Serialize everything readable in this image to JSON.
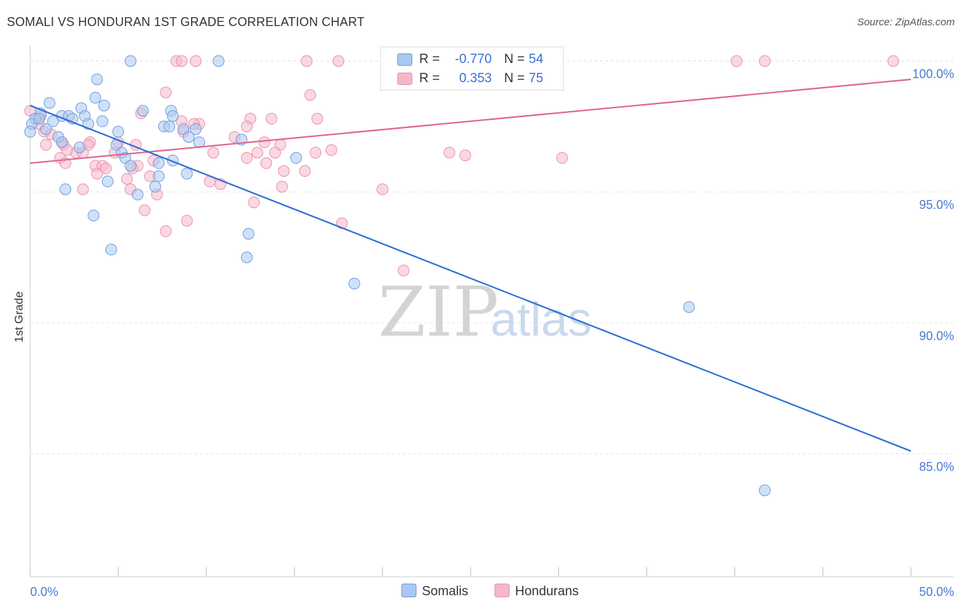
{
  "header": {
    "title": "SOMALI VS HONDURAN 1ST GRADE CORRELATION CHART",
    "source": "Source: ZipAtlas.com"
  },
  "watermark": {
    "zip": "ZIP",
    "atlas": "atlas"
  },
  "legend": {
    "rows": [
      {
        "r_label": "R =",
        "r_value": "-0.770",
        "n_label": "N =",
        "n_value": "54",
        "color": "#a9c8f0"
      },
      {
        "r_label": "R =",
        "r_value": "0.353",
        "n_label": "N =",
        "n_value": "75",
        "color": "#f5b8cb"
      }
    ]
  },
  "bottom_legend": {
    "items": [
      {
        "label": "Somalis",
        "color": "#a9c8f0"
      },
      {
        "label": "Hondurans",
        "color": "#f5b8cb"
      }
    ]
  },
  "chart_data": {
    "type": "scatter",
    "title": "SOMALI VS HONDURAN 1ST GRADE CORRELATION CHART",
    "xlabel": "",
    "ylabel": "1st Grade",
    "xlim": [
      0,
      50
    ],
    "ylim": [
      80.3,
      100.5
    ],
    "x_tick_labels": [
      "0.0%",
      "50.0%"
    ],
    "y_ticks": [
      85,
      90,
      95,
      100
    ],
    "y_tick_labels": [
      "85.0%",
      "90.0%",
      "95.0%",
      "100.0%"
    ],
    "grid": true,
    "colors": {
      "somalis_fill": "#a9c8f0",
      "somalis_stroke": "#6d9be0",
      "somalis_line": "#2f6fd6",
      "hondurans_fill": "#f5b8cb",
      "hondurans_stroke": "#e890ab",
      "hondurans_line": "#e0678f",
      "tick_text": "#4a7bd0",
      "grid": "#e2e2e2"
    },
    "series": [
      {
        "name": "Somalis",
        "trend": {
          "x": [
            0,
            50
          ],
          "y": [
            98.3,
            85.1
          ]
        },
        "points": [
          {
            "x": 5.7,
            "y": 100
          },
          {
            "x": 10.7,
            "y": 100
          },
          {
            "x": 3.8,
            "y": 99.3
          },
          {
            "x": 1.1,
            "y": 98.4
          },
          {
            "x": 3.7,
            "y": 98.6
          },
          {
            "x": 0.6,
            "y": 98.0
          },
          {
            "x": 2.9,
            "y": 98.2
          },
          {
            "x": 4.2,
            "y": 98.3
          },
          {
            "x": 6.4,
            "y": 98.1
          },
          {
            "x": 8.0,
            "y": 98.1
          },
          {
            "x": 8.1,
            "y": 97.9
          },
          {
            "x": 1.8,
            "y": 97.9
          },
          {
            "x": 2.2,
            "y": 97.9
          },
          {
            "x": 3.1,
            "y": 97.9
          },
          {
            "x": 0.3,
            "y": 97.8
          },
          {
            "x": 2.4,
            "y": 97.8
          },
          {
            "x": 1.3,
            "y": 97.7
          },
          {
            "x": 4.1,
            "y": 97.7
          },
          {
            "x": 0.1,
            "y": 97.6
          },
          {
            "x": 3.3,
            "y": 97.6
          },
          {
            "x": 7.6,
            "y": 97.5
          },
          {
            "x": 7.9,
            "y": 97.5
          },
          {
            "x": 0.9,
            "y": 97.4
          },
          {
            "x": 8.7,
            "y": 97.4
          },
          {
            "x": 9.4,
            "y": 97.4
          },
          {
            "x": 5.0,
            "y": 97.3
          },
          {
            "x": 0.0,
            "y": 97.3
          },
          {
            "x": 1.6,
            "y": 97.1
          },
          {
            "x": 9.0,
            "y": 97.1
          },
          {
            "x": 12.0,
            "y": 97.0
          },
          {
            "x": 9.6,
            "y": 96.9
          },
          {
            "x": 1.8,
            "y": 96.9
          },
          {
            "x": 4.9,
            "y": 96.8
          },
          {
            "x": 2.8,
            "y": 96.7
          },
          {
            "x": 5.2,
            "y": 96.5
          },
          {
            "x": 5.4,
            "y": 96.3
          },
          {
            "x": 15.1,
            "y": 96.3
          },
          {
            "x": 8.1,
            "y": 96.2
          },
          {
            "x": 7.3,
            "y": 96.1
          },
          {
            "x": 5.7,
            "y": 96.0
          },
          {
            "x": 8.9,
            "y": 95.7
          },
          {
            "x": 7.3,
            "y": 95.6
          },
          {
            "x": 4.4,
            "y": 95.4
          },
          {
            "x": 7.1,
            "y": 95.2
          },
          {
            "x": 2.0,
            "y": 95.1
          },
          {
            "x": 6.1,
            "y": 94.9
          },
          {
            "x": 3.6,
            "y": 94.1
          },
          {
            "x": 12.4,
            "y": 93.4
          },
          {
            "x": 4.6,
            "y": 92.8
          },
          {
            "x": 12.3,
            "y": 92.5
          },
          {
            "x": 18.4,
            "y": 91.5
          },
          {
            "x": 37.4,
            "y": 90.6
          },
          {
            "x": 41.7,
            "y": 83.6
          },
          {
            "x": 0.5,
            "y": 97.8
          }
        ]
      },
      {
        "name": "Hondurans",
        "trend": {
          "x": [
            0,
            50
          ],
          "y": [
            96.1,
            99.3
          ]
        },
        "points": [
          {
            "x": 8.3,
            "y": 100
          },
          {
            "x": 8.6,
            "y": 100
          },
          {
            "x": 9.4,
            "y": 100
          },
          {
            "x": 15.7,
            "y": 100
          },
          {
            "x": 17.5,
            "y": 100
          },
          {
            "x": 28.9,
            "y": 100
          },
          {
            "x": 40.1,
            "y": 100
          },
          {
            "x": 41.7,
            "y": 100
          },
          {
            "x": 49.0,
            "y": 100
          },
          {
            "x": 7.7,
            "y": 98.8
          },
          {
            "x": 15.9,
            "y": 98.7
          },
          {
            "x": 0.0,
            "y": 98.1
          },
          {
            "x": 6.3,
            "y": 98.0
          },
          {
            "x": 0.6,
            "y": 97.9
          },
          {
            "x": 16.3,
            "y": 97.8
          },
          {
            "x": 12.5,
            "y": 97.8
          },
          {
            "x": 13.7,
            "y": 97.8
          },
          {
            "x": 8.6,
            "y": 97.7
          },
          {
            "x": 9.6,
            "y": 97.6
          },
          {
            "x": 12.3,
            "y": 97.5
          },
          {
            "x": 0.8,
            "y": 97.3
          },
          {
            "x": 8.7,
            "y": 97.3
          },
          {
            "x": 11.6,
            "y": 97.1
          },
          {
            "x": 1.2,
            "y": 97.2
          },
          {
            "x": 1.8,
            "y": 96.9
          },
          {
            "x": 3.4,
            "y": 96.9
          },
          {
            "x": 5.0,
            "y": 96.9
          },
          {
            "x": 0.9,
            "y": 96.8
          },
          {
            "x": 1.9,
            "y": 96.8
          },
          {
            "x": 3.3,
            "y": 96.8
          },
          {
            "x": 14.2,
            "y": 96.8
          },
          {
            "x": 17.1,
            "y": 96.6
          },
          {
            "x": 2.6,
            "y": 96.5
          },
          {
            "x": 10.4,
            "y": 96.5
          },
          {
            "x": 12.9,
            "y": 96.5
          },
          {
            "x": 13.9,
            "y": 96.5
          },
          {
            "x": 16.2,
            "y": 96.5
          },
          {
            "x": 23.8,
            "y": 96.5
          },
          {
            "x": 24.7,
            "y": 96.4
          },
          {
            "x": 4.8,
            "y": 96.5
          },
          {
            "x": 30.2,
            "y": 96.3
          },
          {
            "x": 1.7,
            "y": 96.3
          },
          {
            "x": 12.3,
            "y": 96.3
          },
          {
            "x": 7.0,
            "y": 96.2
          },
          {
            "x": 2.0,
            "y": 96.1
          },
          {
            "x": 13.4,
            "y": 96.1
          },
          {
            "x": 6.1,
            "y": 96.0
          },
          {
            "x": 3.7,
            "y": 96.0
          },
          {
            "x": 4.1,
            "y": 96.0
          },
          {
            "x": 5.8,
            "y": 95.9
          },
          {
            "x": 4.3,
            "y": 95.9
          },
          {
            "x": 14.4,
            "y": 95.8
          },
          {
            "x": 15.6,
            "y": 95.8
          },
          {
            "x": 3.8,
            "y": 95.7
          },
          {
            "x": 6.8,
            "y": 95.6
          },
          {
            "x": 5.5,
            "y": 95.5
          },
          {
            "x": 10.2,
            "y": 95.4
          },
          {
            "x": 10.8,
            "y": 95.3
          },
          {
            "x": 14.3,
            "y": 95.2
          },
          {
            "x": 3.0,
            "y": 95.1
          },
          {
            "x": 5.7,
            "y": 95.1
          },
          {
            "x": 20.0,
            "y": 95.1
          },
          {
            "x": 7.2,
            "y": 94.9
          },
          {
            "x": 12.7,
            "y": 94.6
          },
          {
            "x": 6.5,
            "y": 94.3
          },
          {
            "x": 8.9,
            "y": 93.9
          },
          {
            "x": 17.7,
            "y": 93.8
          },
          {
            "x": 7.7,
            "y": 93.5
          },
          {
            "x": 21.2,
            "y": 92.0
          },
          {
            "x": 0.5,
            "y": 97.6
          },
          {
            "x": 2.1,
            "y": 96.6
          },
          {
            "x": 3.0,
            "y": 96.5
          },
          {
            "x": 6.0,
            "y": 96.8
          },
          {
            "x": 9.3,
            "y": 97.6
          },
          {
            "x": 13.3,
            "y": 96.9
          }
        ]
      }
    ]
  }
}
